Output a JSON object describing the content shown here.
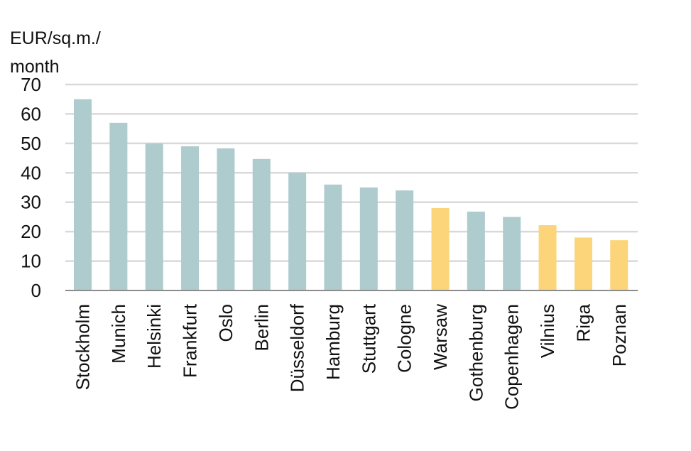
{
  "chart_data": {
    "type": "bar",
    "ylabel": "EUR/sq.m./\nmonth",
    "ylim": [
      0,
      70
    ],
    "yticks": [
      0,
      10,
      20,
      30,
      40,
      50,
      60,
      70
    ],
    "grid": true,
    "categories": [
      "Stockholm",
      "Munich",
      "Helsinki",
      "Frankfurt",
      "Oslo",
      "Berlin",
      "Düsseldorf",
      "Hamburg",
      "Stuttgart",
      "Cologne",
      "Warsaw",
      "Gothenburg",
      "Copenhagen",
      "Vilnius",
      "Riga",
      "Poznan"
    ],
    "values": [
      65,
      57,
      50,
      49,
      48.3,
      44.7,
      40,
      36,
      35,
      34,
      28,
      26.8,
      25,
      22.2,
      18,
      17.1
    ],
    "bar_colors": [
      "#aecbce",
      "#aecbce",
      "#aecbce",
      "#aecbce",
      "#aecbce",
      "#aecbce",
      "#aecbce",
      "#aecbce",
      "#aecbce",
      "#aecbce",
      "#fcd57a",
      "#aecbce",
      "#aecbce",
      "#fcd57a",
      "#fcd57a",
      "#fcd57a"
    ],
    "grid_color": "#d9d9d9",
    "axis_color": "#8c8c8c"
  }
}
